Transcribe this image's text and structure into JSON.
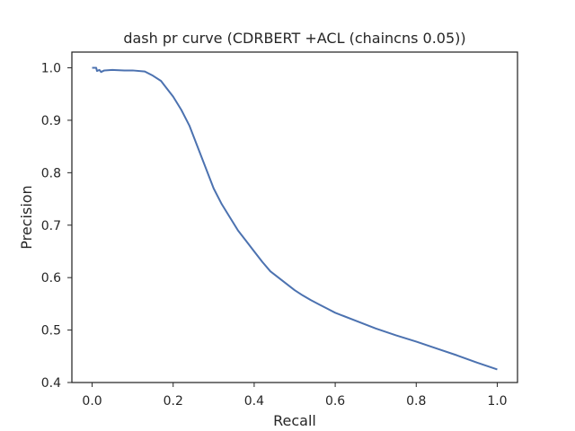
{
  "chart_data": {
    "type": "line",
    "title": "dash pr curve (CDRBERT +ACL (chaincns 0.05))",
    "xlabel": "Recall",
    "ylabel": "Precision",
    "xlim": [
      -0.05,
      1.05
    ],
    "ylim": [
      0.4,
      1.03
    ],
    "xticks": [
      0.0,
      0.2,
      0.4,
      0.6,
      0.8,
      1.0
    ],
    "xtick_labels": [
      "0.0",
      "0.2",
      "0.4",
      "0.6",
      "0.8",
      "1.0"
    ],
    "yticks": [
      0.4,
      0.5,
      0.6,
      0.7,
      0.8,
      0.9,
      1.0
    ],
    "ytick_labels": [
      "0.4",
      "0.5",
      "0.6",
      "0.7",
      "0.8",
      "0.9",
      "1.0"
    ],
    "grid": false,
    "series": [
      {
        "color": "#4c72b0",
        "x": [
          0.0,
          0.01,
          0.012,
          0.018,
          0.022,
          0.03,
          0.05,
          0.08,
          0.1,
          0.13,
          0.15,
          0.17,
          0.18,
          0.2,
          0.22,
          0.24,
          0.26,
          0.28,
          0.3,
          0.32,
          0.34,
          0.36,
          0.38,
          0.4,
          0.42,
          0.44,
          0.46,
          0.48,
          0.5,
          0.52,
          0.54,
          0.56,
          0.58,
          0.6,
          0.65,
          0.7,
          0.75,
          0.8,
          0.85,
          0.9,
          0.95,
          1.0
        ],
        "y": [
          1.0,
          1.0,
          0.994,
          0.996,
          0.992,
          0.995,
          0.996,
          0.995,
          0.995,
          0.993,
          0.985,
          0.975,
          0.965,
          0.945,
          0.92,
          0.89,
          0.85,
          0.81,
          0.77,
          0.74,
          0.715,
          0.69,
          0.67,
          0.65,
          0.63,
          0.612,
          0.6,
          0.588,
          0.576,
          0.566,
          0.557,
          0.549,
          0.541,
          0.533,
          0.518,
          0.503,
          0.49,
          0.478,
          0.465,
          0.452,
          0.438,
          0.425
        ]
      }
    ]
  }
}
